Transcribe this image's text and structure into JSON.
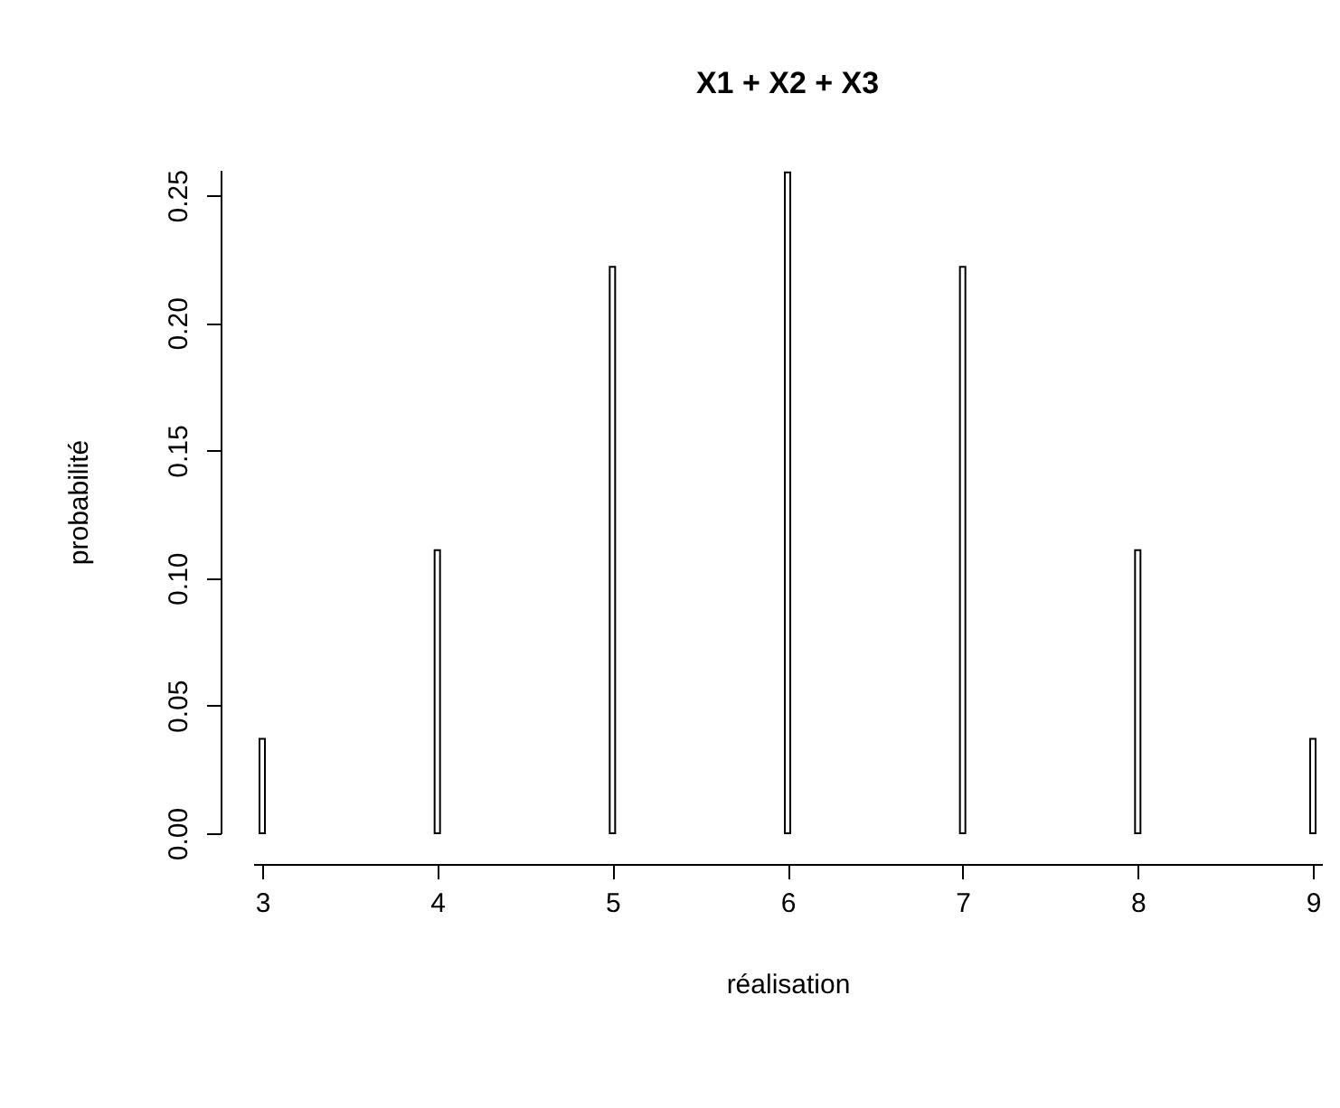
{
  "chart_data": {
    "type": "bar",
    "title": "X1 + X2 + X3",
    "xlabel": "réalisation",
    "ylabel": "probabilité",
    "x": [
      3,
      4,
      5,
      6,
      7,
      8,
      9
    ],
    "values": [
      0.037,
      0.111,
      0.222,
      0.259,
      0.222,
      0.111,
      0.037
    ],
    "color": "#ffffff",
    "xlim": [
      3,
      9
    ],
    "xticks": [
      3,
      4,
      5,
      6,
      7,
      8,
      9
    ],
    "ylim": [
      0,
      0.26
    ],
    "yticks": [
      {
        "value": 0,
        "label": "0.00"
      },
      {
        "value": 0.05,
        "label": "0.05"
      },
      {
        "value": 0.1,
        "label": "0.10"
      },
      {
        "value": 0.15,
        "label": "0.15"
      },
      {
        "value": 0.2,
        "label": "0.20"
      },
      {
        "value": 0.25,
        "label": "0.25"
      }
    ],
    "grid": false
  }
}
